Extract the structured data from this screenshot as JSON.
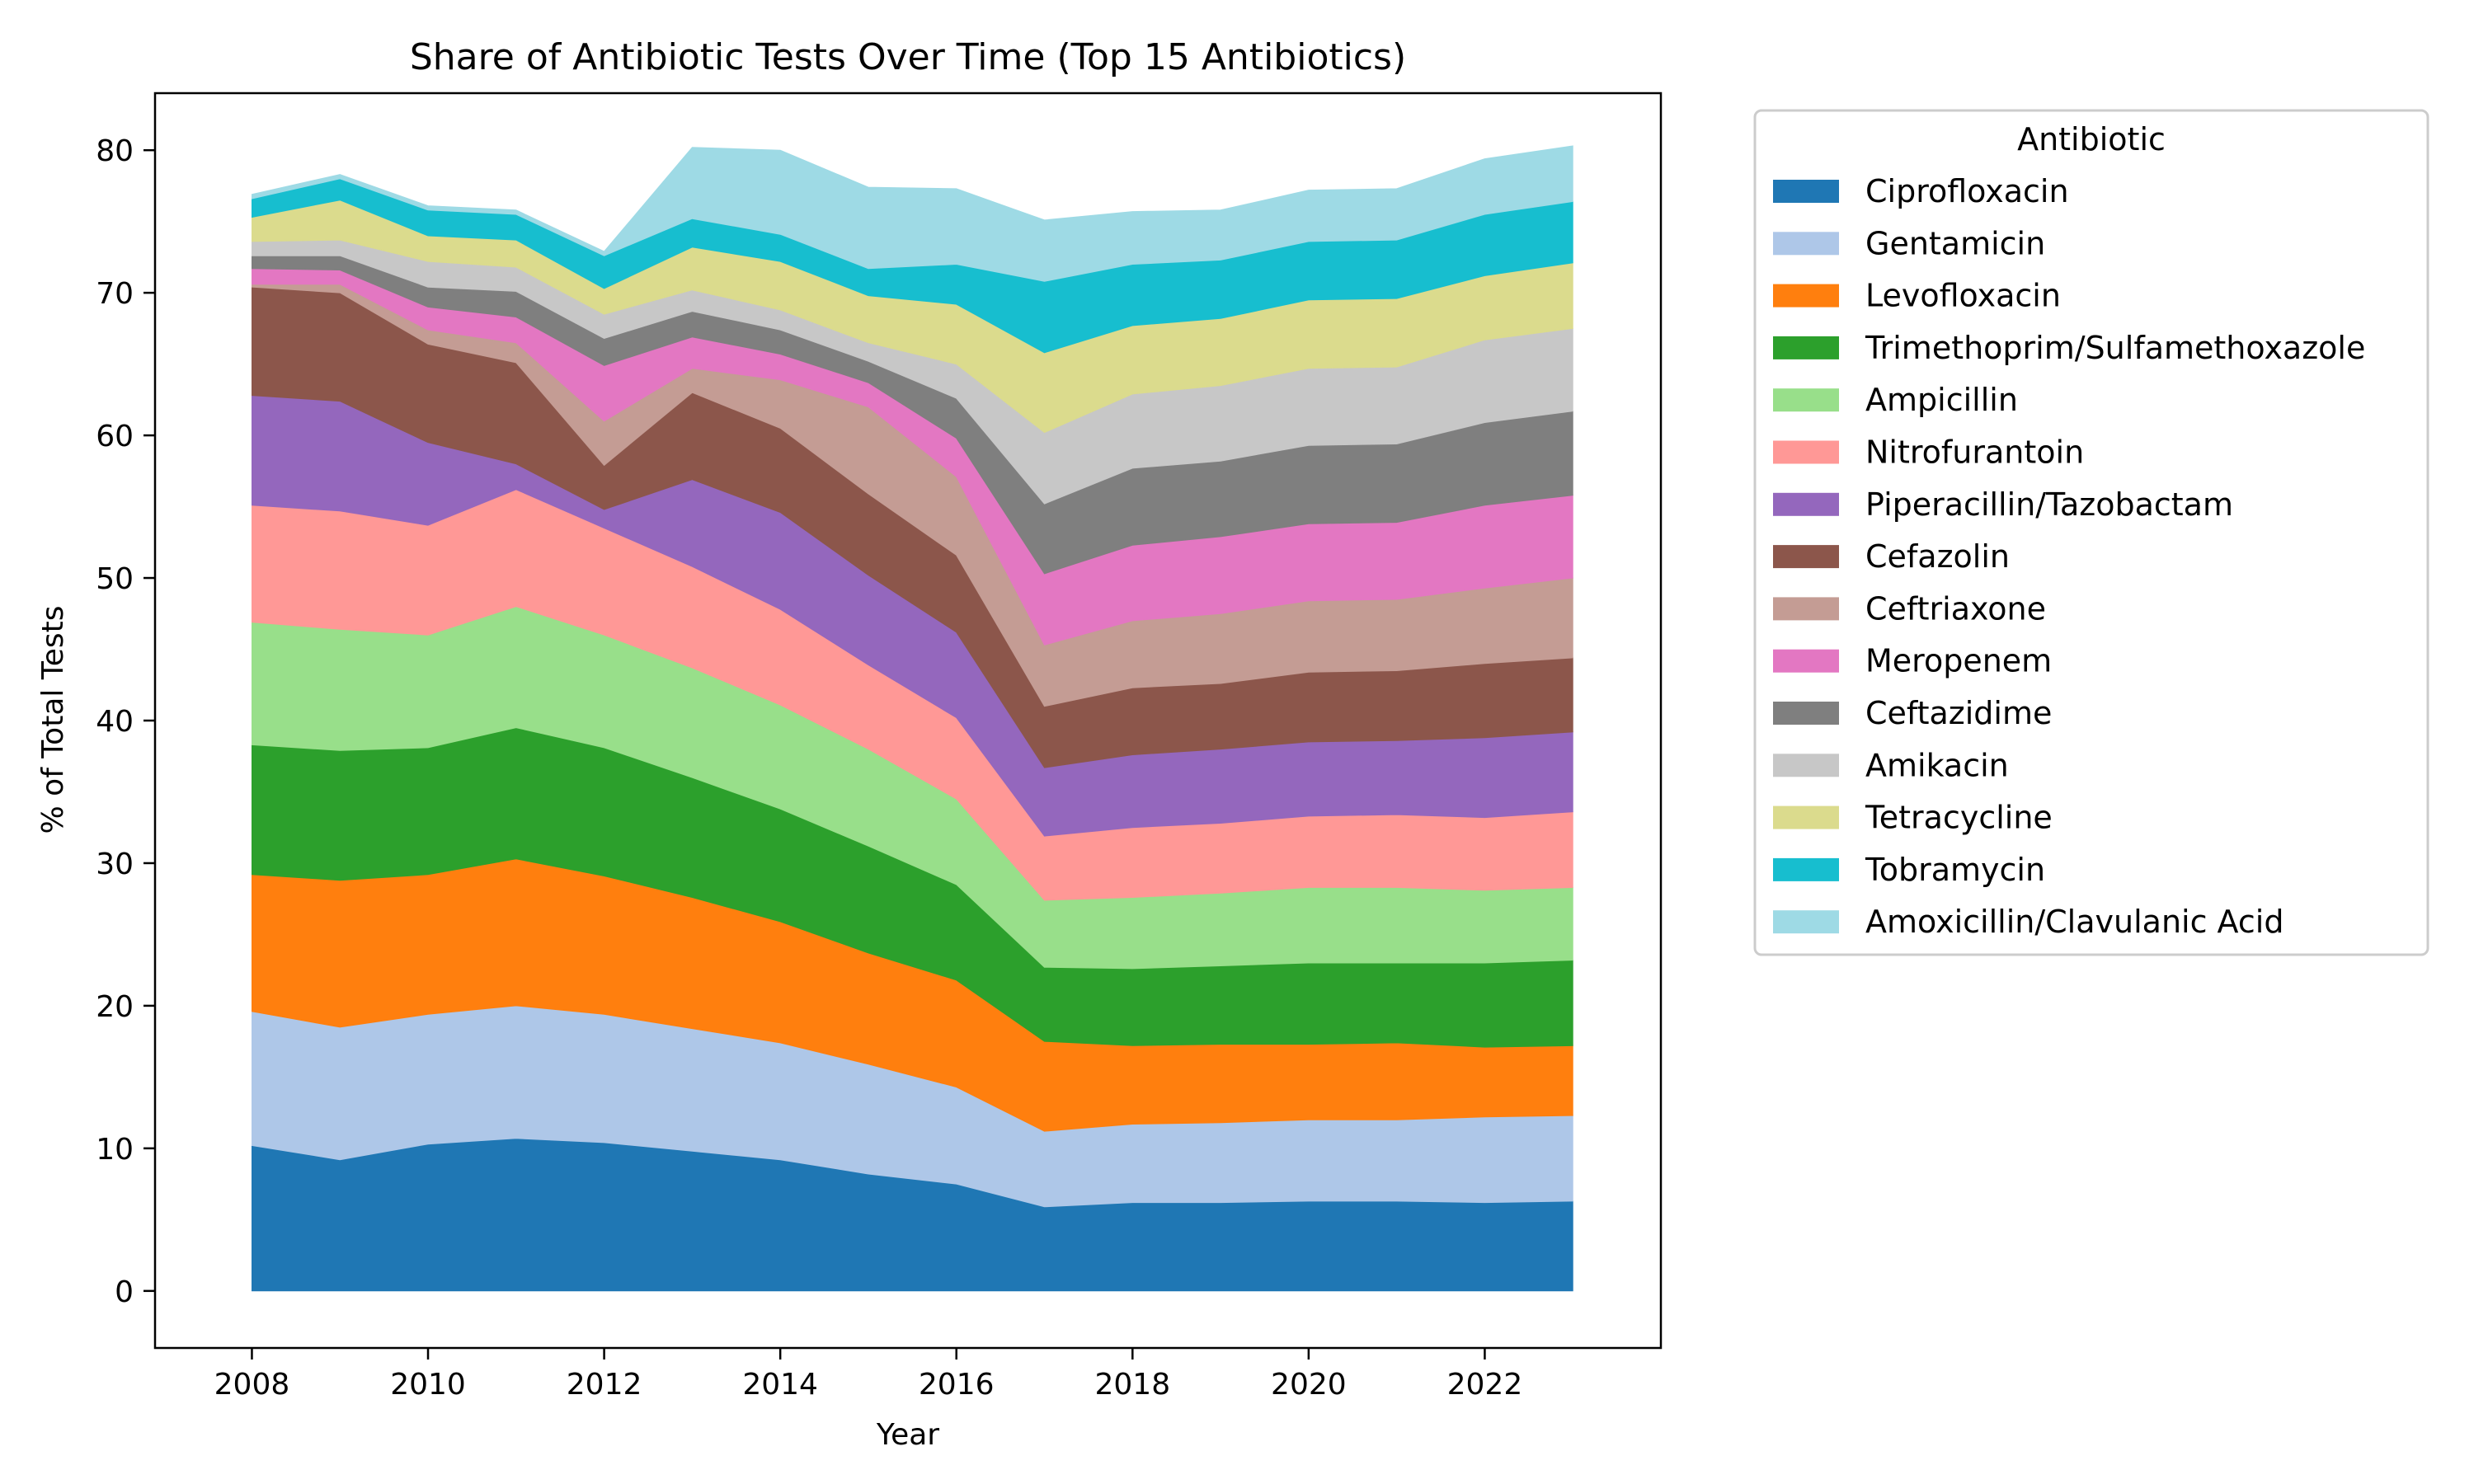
{
  "chart_data": {
    "type": "area",
    "stacked": true,
    "title": "Share of Antibiotic Tests Over Time (Top 15 Antibiotics)",
    "xlabel": "Year",
    "ylabel": "% of Total Tests",
    "xlim": [
      2006.9,
      2024.0
    ],
    "ylim": [
      -4,
      84
    ],
    "xticks": [
      2008,
      2010,
      2012,
      2014,
      2016,
      2018,
      2020,
      2022
    ],
    "yticks": [
      0,
      10,
      20,
      30,
      40,
      50,
      60,
      70,
      80
    ],
    "grid": false,
    "legend": {
      "title": "Antibiotic",
      "placement": "outside-right-top"
    },
    "x": [
      2008,
      2009,
      2010,
      2011,
      2012,
      2013,
      2014,
      2015,
      2016,
      2017,
      2018,
      2019,
      2020,
      2021,
      2022,
      2023
    ],
    "series": [
      {
        "name": "Ciprofloxacin",
        "color": "#1f77b4",
        "values": [
          10.2,
          9.2,
          10.3,
          10.7,
          10.4,
          9.8,
          9.2,
          8.2,
          7.5,
          5.9,
          6.2,
          6.2,
          6.3,
          6.3,
          6.2,
          6.3
        ]
      },
      {
        "name": "Gentamicin",
        "color": "#aec7e8",
        "values": [
          9.4,
          9.3,
          9.1,
          9.3,
          9.0,
          8.6,
          8.2,
          7.7,
          6.8,
          5.3,
          5.5,
          5.6,
          5.7,
          5.7,
          6.0,
          6.0
        ]
      },
      {
        "name": "Levofloxacin",
        "color": "#ff7f0e",
        "values": [
          9.6,
          10.3,
          9.8,
          10.3,
          9.7,
          9.2,
          8.5,
          7.8,
          7.5,
          6.3,
          5.5,
          5.5,
          5.3,
          5.4,
          4.9,
          4.9
        ]
      },
      {
        "name": "Trimethoprim/Sulfamethoxazole",
        "color": "#2ca02c",
        "values": [
          9.1,
          9.1,
          8.9,
          9.2,
          9.0,
          8.4,
          7.9,
          7.5,
          6.7,
          5.2,
          5.4,
          5.5,
          5.7,
          5.6,
          5.9,
          6.0
        ]
      },
      {
        "name": "Ampicillin",
        "color": "#98df8a",
        "values": [
          8.6,
          8.5,
          7.9,
          8.5,
          7.9,
          7.7,
          7.3,
          6.8,
          6.0,
          4.7,
          5.0,
          5.1,
          5.3,
          5.3,
          5.1,
          5.1
        ]
      },
      {
        "name": "Nitrofurantoin",
        "color": "#ff9896",
        "values": [
          8.2,
          8.3,
          7.7,
          8.2,
          7.5,
          7.1,
          6.7,
          5.9,
          5.7,
          4.5,
          4.9,
          4.9,
          5.0,
          5.1,
          5.1,
          5.3
        ]
      },
      {
        "name": "Piperacillin/Tazobactam",
        "color": "#9467bd",
        "values": [
          7.7,
          7.7,
          5.8,
          1.8,
          1.3,
          6.1,
          6.8,
          6.3,
          6.0,
          4.8,
          5.1,
          5.2,
          5.2,
          5.2,
          5.6,
          5.6
        ]
      },
      {
        "name": "Cefazolin",
        "color": "#8c564b",
        "values": [
          7.6,
          7.6,
          6.9,
          7.1,
          3.1,
          6.1,
          5.9,
          5.7,
          5.4,
          4.3,
          4.7,
          4.6,
          4.9,
          4.9,
          5.2,
          5.2
        ]
      },
      {
        "name": "Ceftriaxone",
        "color": "#c49c94",
        "values": [
          0.2,
          0.6,
          1.0,
          1.4,
          3.1,
          1.7,
          3.4,
          6.1,
          5.5,
          4.3,
          4.7,
          4.9,
          5.0,
          5.0,
          5.3,
          5.6
        ]
      },
      {
        "name": "Meropenem",
        "color": "#e377c2",
        "values": [
          1.1,
          1.0,
          1.6,
          1.8,
          3.9,
          2.2,
          1.8,
          1.7,
          2.7,
          5.0,
          5.3,
          5.4,
          5.4,
          5.4,
          5.8,
          5.8
        ]
      },
      {
        "name": "Ceftazidime",
        "color": "#7f7f7f",
        "values": [
          0.9,
          1.0,
          1.4,
          1.8,
          1.9,
          1.8,
          1.7,
          1.5,
          2.8,
          4.9,
          5.4,
          5.3,
          5.5,
          5.5,
          5.8,
          5.9
        ]
      },
      {
        "name": "Amikacin",
        "color": "#c7c7c7",
        "values": [
          1.0,
          1.1,
          1.8,
          1.7,
          1.7,
          1.5,
          1.4,
          1.3,
          2.4,
          5.0,
          5.2,
          5.3,
          5.4,
          5.4,
          5.8,
          5.8
        ]
      },
      {
        "name": "Tetracycline",
        "color": "#dbdb8d",
        "values": [
          1.7,
          2.8,
          1.8,
          1.9,
          1.8,
          3.0,
          3.4,
          3.3,
          4.2,
          5.6,
          4.8,
          4.7,
          4.8,
          4.8,
          4.5,
          4.6
        ]
      },
      {
        "name": "Tobramycin",
        "color": "#17becf",
        "values": [
          1.3,
          1.5,
          1.8,
          1.8,
          2.3,
          2.0,
          1.9,
          1.9,
          2.8,
          5.0,
          4.3,
          4.1,
          4.1,
          4.1,
          4.3,
          4.3
        ]
      },
      {
        "name": "Amoxicillin/Clavulanic Acid",
        "color": "#9edae5",
        "values": [
          0.3,
          0.3,
          0.3,
          0.3,
          0.3,
          5.0,
          5.9,
          5.7,
          5.3,
          4.3,
          3.7,
          3.5,
          3.6,
          3.6,
          3.9,
          3.9
        ]
      }
    ]
  }
}
